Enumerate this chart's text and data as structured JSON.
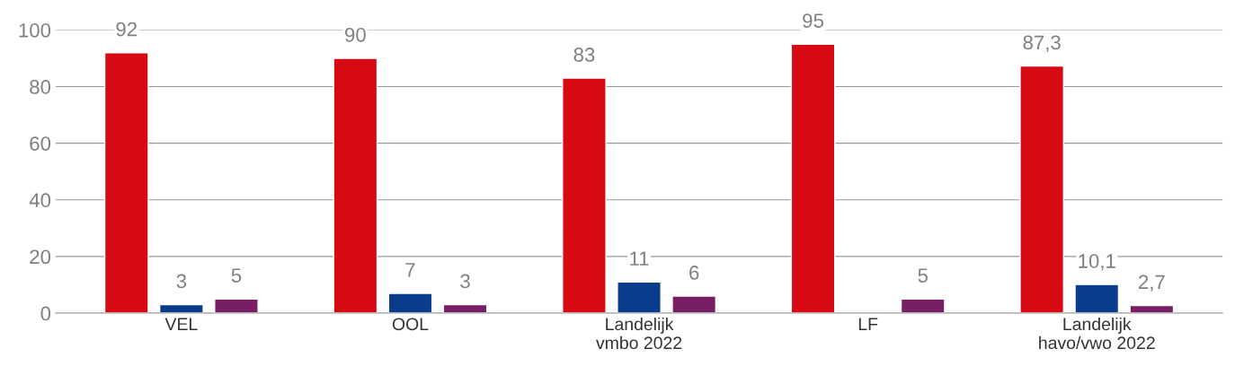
{
  "chart_data": {
    "type": "bar",
    "categories": [
      "VEL",
      "OOL",
      "Landelijk\nvmbo 2022",
      "LF",
      "Landelijk\nhavo/vwo 2022"
    ],
    "series": [
      {
        "color": "#d70a14",
        "values": [
          92,
          90,
          83,
          95,
          87.3
        ],
        "value_labels": [
          "92",
          "90",
          "83",
          "95",
          "87,3"
        ]
      },
      {
        "color": "#0a3c8c",
        "values": [
          3,
          7,
          11,
          null,
          10.1
        ],
        "value_labels": [
          "3",
          "7",
          "11",
          null,
          "10,1"
        ]
      },
      {
        "color": "#781e64",
        "values": [
          5,
          3,
          6,
          5,
          2.7
        ],
        "value_labels": [
          "5",
          "3",
          "6",
          "5",
          "2,7"
        ]
      }
    ],
    "ylim": [
      0,
      100
    ],
    "yticks": [
      0,
      20,
      40,
      60,
      80,
      100
    ],
    "grid": "y",
    "legend": false
  }
}
